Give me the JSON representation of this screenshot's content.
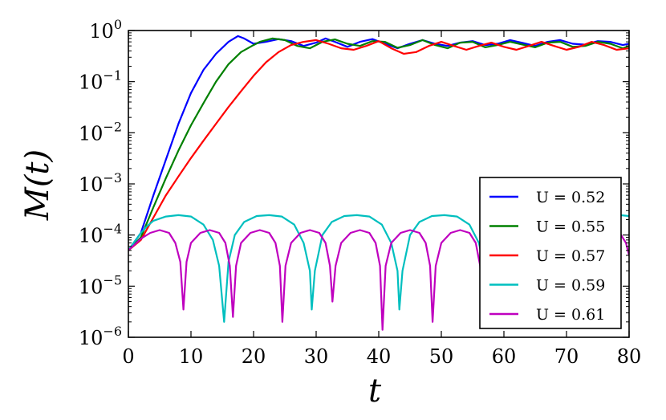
{
  "chart_data": {
    "type": "line",
    "xlabel": "t",
    "ylabel": "M(t)",
    "xlim": [
      0,
      80
    ],
    "ylim": [
      1e-06,
      1
    ],
    "yscale": "log",
    "grid": false,
    "legend_position": "lower-right",
    "x_ticks": [
      "0",
      "10",
      "20",
      "30",
      "40",
      "50",
      "60",
      "70",
      "80"
    ],
    "y_ticks": [
      {
        "base": "10",
        "exp": "0"
      },
      {
        "base": "10",
        "exp": "−1"
      },
      {
        "base": "10",
        "exp": "−2"
      },
      {
        "base": "10",
        "exp": "−3"
      },
      {
        "base": "10",
        "exp": "−4"
      },
      {
        "base": "10",
        "exp": "−5"
      },
      {
        "base": "10",
        "exp": "−6"
      }
    ],
    "series": [
      {
        "name": "U = 0.52",
        "color": "#0000ff",
        "points": [
          [
            0,
            5e-05
          ],
          [
            2,
            0.00011
          ],
          [
            4,
            0.0006
          ],
          [
            6,
            0.003
          ],
          [
            8,
            0.015
          ],
          [
            10,
            0.06
          ],
          [
            12,
            0.17
          ],
          [
            14,
            0.35
          ],
          [
            16,
            0.6
          ],
          [
            17.5,
            0.78
          ],
          [
            18.5,
            0.7
          ],
          [
            20,
            0.55
          ],
          [
            22,
            0.6
          ],
          [
            24,
            0.68
          ],
          [
            26,
            0.62
          ],
          [
            28,
            0.5
          ],
          [
            30,
            0.58
          ],
          [
            31.5,
            0.7
          ],
          [
            33,
            0.6
          ],
          [
            35,
            0.48
          ],
          [
            37,
            0.6
          ],
          [
            39,
            0.68
          ],
          [
            41,
            0.55
          ],
          [
            43,
            0.45
          ],
          [
            45,
            0.55
          ],
          [
            47,
            0.65
          ],
          [
            49,
            0.55
          ],
          [
            51,
            0.5
          ],
          [
            53,
            0.58
          ],
          [
            55,
            0.62
          ],
          [
            57,
            0.52
          ],
          [
            59,
            0.55
          ],
          [
            61,
            0.65
          ],
          [
            63,
            0.57
          ],
          [
            65,
            0.5
          ],
          [
            67,
            0.6
          ],
          [
            69,
            0.65
          ],
          [
            71,
            0.55
          ],
          [
            73,
            0.53
          ],
          [
            75,
            0.62
          ],
          [
            77,
            0.6
          ],
          [
            79,
            0.52
          ],
          [
            80,
            0.55
          ]
        ]
      },
      {
        "name": "U = 0.55",
        "color": "#008000",
        "points": [
          [
            0,
            5e-05
          ],
          [
            2,
            9e-05
          ],
          [
            4,
            0.00035
          ],
          [
            6,
            0.0013
          ],
          [
            8,
            0.0045
          ],
          [
            10,
            0.014
          ],
          [
            12,
            0.038
          ],
          [
            14,
            0.1
          ],
          [
            16,
            0.22
          ],
          [
            18,
            0.38
          ],
          [
            20,
            0.52
          ],
          [
            21,
            0.6
          ],
          [
            23,
            0.7
          ],
          [
            25,
            0.65
          ],
          [
            27,
            0.5
          ],
          [
            29,
            0.45
          ],
          [
            31,
            0.6
          ],
          [
            33,
            0.67
          ],
          [
            35,
            0.55
          ],
          [
            37,
            0.5
          ],
          [
            39,
            0.62
          ],
          [
            41,
            0.6
          ],
          [
            43,
            0.46
          ],
          [
            45,
            0.52
          ],
          [
            47,
            0.65
          ],
          [
            49,
            0.52
          ],
          [
            51,
            0.45
          ],
          [
            53,
            0.58
          ],
          [
            55,
            0.6
          ],
          [
            57,
            0.47
          ],
          [
            59,
            0.52
          ],
          [
            61,
            0.6
          ],
          [
            63,
            0.53
          ],
          [
            65,
            0.47
          ],
          [
            67,
            0.58
          ],
          [
            69,
            0.6
          ],
          [
            71,
            0.48
          ],
          [
            73,
            0.5
          ],
          [
            75,
            0.6
          ],
          [
            77,
            0.55
          ],
          [
            79,
            0.45
          ],
          [
            80,
            0.5
          ]
        ]
      },
      {
        "name": "U = 0.57",
        "color": "#ff0000",
        "points": [
          [
            0,
            5e-05
          ],
          [
            2,
            8e-05
          ],
          [
            4,
            0.00022
          ],
          [
            6,
            0.0006
          ],
          [
            8,
            0.0014
          ],
          [
            10,
            0.0032
          ],
          [
            12,
            0.007
          ],
          [
            14,
            0.015
          ],
          [
            16,
            0.032
          ],
          [
            18,
            0.065
          ],
          [
            20,
            0.13
          ],
          [
            22,
            0.24
          ],
          [
            24,
            0.38
          ],
          [
            26,
            0.52
          ],
          [
            28,
            0.6
          ],
          [
            30,
            0.65
          ],
          [
            32,
            0.55
          ],
          [
            34,
            0.45
          ],
          [
            36,
            0.42
          ],
          [
            38,
            0.5
          ],
          [
            40,
            0.62
          ],
          [
            42,
            0.45
          ],
          [
            44,
            0.35
          ],
          [
            46,
            0.38
          ],
          [
            48,
            0.5
          ],
          [
            50,
            0.6
          ],
          [
            52,
            0.5
          ],
          [
            54,
            0.42
          ],
          [
            56,
            0.5
          ],
          [
            58,
            0.58
          ],
          [
            60,
            0.48
          ],
          [
            62,
            0.42
          ],
          [
            64,
            0.5
          ],
          [
            66,
            0.6
          ],
          [
            68,
            0.5
          ],
          [
            70,
            0.42
          ],
          [
            72,
            0.48
          ],
          [
            74,
            0.6
          ],
          [
            76,
            0.52
          ],
          [
            78,
            0.42
          ],
          [
            80,
            0.45
          ]
        ]
      },
      {
        "name": "U = 0.59",
        "color": "#00bfbf",
        "points": [
          [
            0,
            5e-05
          ],
          [
            1,
            7.5e-05
          ],
          [
            2,
            0.00011
          ],
          [
            3,
            0.00015
          ],
          [
            4,
            0.00019
          ],
          [
            6,
            0.00023
          ],
          [
            8,
            0.000245
          ],
          [
            10,
            0.00023
          ],
          [
            12,
            0.00016
          ],
          [
            13.5,
            8e-05
          ],
          [
            14.5,
            2.5e-05
          ],
          [
            15.3,
            2e-06
          ],
          [
            16,
            3e-05
          ],
          [
            17,
            0.0001
          ],
          [
            18.5,
            0.00018
          ],
          [
            20.5,
            0.000235
          ],
          [
            22.5,
            0.000245
          ],
          [
            24.5,
            0.00023
          ],
          [
            26.5,
            0.00016
          ],
          [
            28,
            7e-05
          ],
          [
            29,
            2e-05
          ],
          [
            29.3,
            3.5e-06
          ],
          [
            29.8,
            2e-05
          ],
          [
            31,
            0.0001
          ],
          [
            32.5,
            0.00018
          ],
          [
            34.5,
            0.000235
          ],
          [
            36.5,
            0.000245
          ],
          [
            38.5,
            0.00023
          ],
          [
            40.5,
            0.00016
          ],
          [
            42,
            7e-05
          ],
          [
            43,
            2e-05
          ],
          [
            43.3,
            3.5e-06
          ],
          [
            43.8,
            2e-05
          ],
          [
            45,
            0.0001
          ],
          [
            46.5,
            0.00018
          ],
          [
            48.5,
            0.000235
          ],
          [
            50.5,
            0.000245
          ],
          [
            52.5,
            0.00023
          ],
          [
            54.5,
            0.00016
          ],
          [
            56,
            7e-05
          ],
          [
            57,
            2e-05
          ],
          [
            57.3,
            3.5e-06
          ],
          [
            57.8,
            2e-05
          ],
          [
            59,
            0.0001
          ],
          [
            60.5,
            0.00018
          ],
          [
            62.5,
            0.000235
          ],
          [
            64.5,
            0.000245
          ],
          [
            66.5,
            0.00023
          ],
          [
            68.5,
            0.00016
          ],
          [
            70,
            7e-05
          ],
          [
            71,
            2e-05
          ],
          [
            71.3,
            3.5e-06
          ],
          [
            71.8,
            2e-05
          ],
          [
            73,
            0.0001
          ],
          [
            74.5,
            0.00018
          ],
          [
            76.5,
            0.000235
          ],
          [
            78.5,
            0.000245
          ],
          [
            80,
            0.000235
          ]
        ]
      },
      {
        "name": "U = 0.61",
        "color": "#bf00bf",
        "points": [
          [
            0,
            5e-05
          ],
          [
            1,
            6.5e-05
          ],
          [
            2,
            8.5e-05
          ],
          [
            3.5,
            0.00011
          ],
          [
            5,
            0.000125
          ],
          [
            6.5,
            0.00011
          ],
          [
            7.5,
            7e-05
          ],
          [
            8.3,
            3e-05
          ],
          [
            8.8,
            3.5e-06
          ],
          [
            9.3,
            3e-05
          ],
          [
            10,
            7e-05
          ],
          [
            11.5,
            0.00011
          ],
          [
            13,
            0.000125
          ],
          [
            14.5,
            0.00011
          ],
          [
            15.5,
            7e-05
          ],
          [
            16.2,
            2.5e-05
          ],
          [
            16.7,
            2.5e-06
          ],
          [
            17.2,
            2.5e-05
          ],
          [
            18,
            7e-05
          ],
          [
            19.5,
            0.00011
          ],
          [
            21,
            0.000125
          ],
          [
            22.5,
            0.00011
          ],
          [
            23.5,
            7e-05
          ],
          [
            24.2,
            2.5e-05
          ],
          [
            24.6,
            2e-06
          ],
          [
            25.1,
            2.5e-05
          ],
          [
            26,
            7e-05
          ],
          [
            27.5,
            0.00011
          ],
          [
            29,
            0.000125
          ],
          [
            30.5,
            0.00011
          ],
          [
            31.5,
            7e-05
          ],
          [
            32.2,
            2.5e-05
          ],
          [
            32.6,
            5e-06
          ],
          [
            33.1,
            2.5e-05
          ],
          [
            34,
            7e-05
          ],
          [
            35.5,
            0.00011
          ],
          [
            37,
            0.000125
          ],
          [
            38.5,
            0.00011
          ],
          [
            39.5,
            7e-05
          ],
          [
            40.2,
            2.5e-05
          ],
          [
            40.6,
            1.4e-06
          ],
          [
            41.1,
            2.5e-05
          ],
          [
            42,
            7e-05
          ],
          [
            43.5,
            0.00011
          ],
          [
            45,
            0.000125
          ],
          [
            46.5,
            0.00011
          ],
          [
            47.5,
            7e-05
          ],
          [
            48.2,
            2.5e-05
          ],
          [
            48.6,
            2e-06
          ],
          [
            49.1,
            2.5e-05
          ],
          [
            50,
            7e-05
          ],
          [
            51.5,
            0.00011
          ],
          [
            53,
            0.000125
          ],
          [
            54.5,
            0.00011
          ],
          [
            55.5,
            7e-05
          ],
          [
            56.2,
            2.5e-05
          ],
          [
            56.6,
            3e-06
          ],
          [
            57.1,
            2.5e-05
          ],
          [
            58,
            7e-05
          ],
          [
            59.5,
            0.00011
          ],
          [
            61,
            0.000125
          ],
          [
            62.5,
            0.00011
          ],
          [
            63.5,
            7e-05
          ],
          [
            64.2,
            2.5e-05
          ],
          [
            64.6,
            2.5e-06
          ],
          [
            65.1,
            2.5e-05
          ],
          [
            66,
            7e-05
          ],
          [
            67.5,
            0.00011
          ],
          [
            69,
            0.000125
          ],
          [
            70.5,
            0.00011
          ],
          [
            71.5,
            7e-05
          ],
          [
            72.2,
            2.5e-05
          ],
          [
            72.6,
            2.5e-06
          ],
          [
            73.1,
            2.5e-05
          ],
          [
            74,
            7e-05
          ],
          [
            75.5,
            0.00011
          ],
          [
            77,
            0.000125
          ],
          [
            78.5,
            0.00011
          ],
          [
            79.5,
            7e-05
          ],
          [
            80,
            4e-05
          ]
        ]
      }
    ]
  }
}
